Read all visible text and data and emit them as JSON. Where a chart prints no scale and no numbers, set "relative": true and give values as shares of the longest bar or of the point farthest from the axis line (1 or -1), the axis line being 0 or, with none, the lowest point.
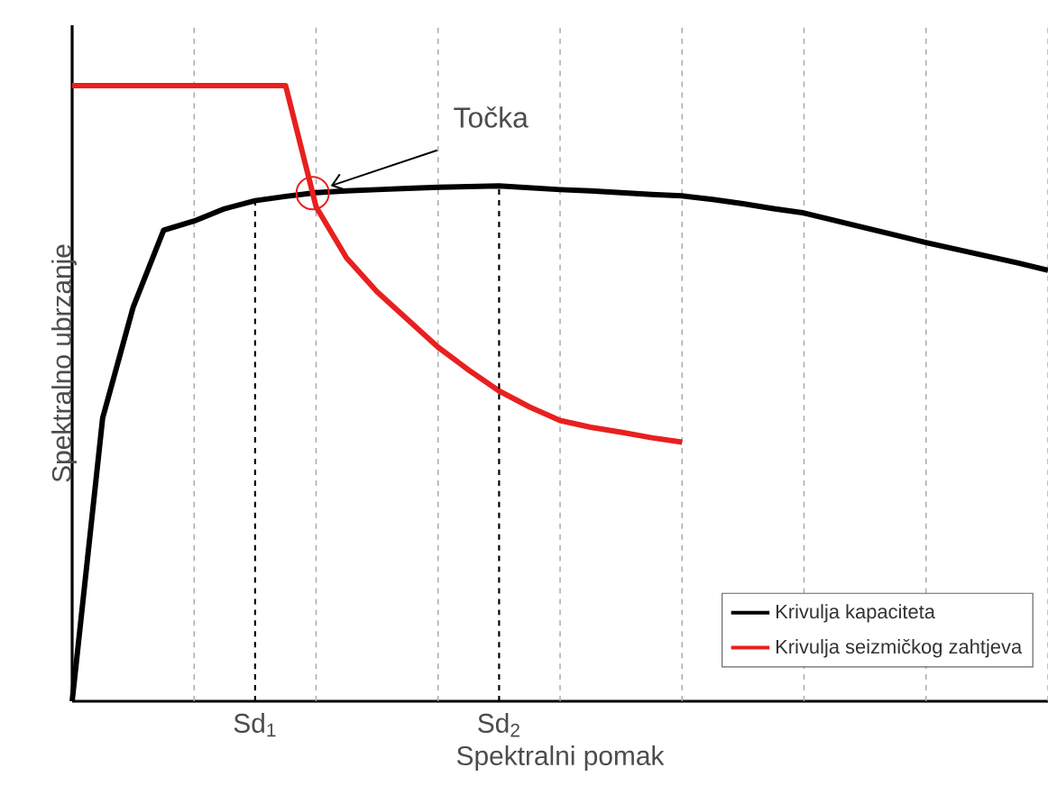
{
  "chart_data": {
    "type": "line",
    "relative": true,
    "xlabel": "Spektralni pomak",
    "ylabel": "Spektralno ubrzanje",
    "categories": [
      null,
      null,
      null,
      null,
      null,
      null,
      "Sd$_{1}$",
      null,
      null,
      null,
      null,
      null,
      null,
      null,
      "Sd$_{2}$",
      null,
      null,
      null,
      null,
      null,
      null,
      null,
      null,
      null,
      null,
      null,
      null,
      null,
      null,
      null,
      null,
      null,
      null
    ],
    "grid": "x",
    "legend": "bottom right",
    "marker": "none",
    "line_style": "solid",
    "annotations": [
      "Točka"
    ],
    "series": [
      {
        "name": "Krivulja kapaciteta",
        "color": "#000000",
        "values": [
          0,
          0.46,
          0.64,
          0.765,
          0.78,
          0.8,
          0.813,
          0.82,
          0.826,
          0.829,
          0.831,
          0.833,
          0.835,
          0.836,
          0.837,
          0.834,
          0.831,
          0.829,
          0.826,
          0.823,
          0.821,
          0.815,
          0.808,
          0.8,
          0.793,
          0.781,
          0.769,
          0.757,
          0.745,
          0.734,
          0.723,
          0.712,
          0.7
        ]
      },
      {
        "name": "Krivulja seizmičkog zahtjeva",
        "color": "#e8201f",
        "values": [
          1,
          1,
          1,
          1,
          1,
          1,
          1,
          1,
          0.803,
          0.72,
          0.665,
          0.62,
          0.575,
          0.538,
          0.504,
          0.478,
          0.456,
          0.445,
          0.437,
          0.428,
          0.421,
          null,
          null,
          null,
          null,
          null,
          null,
          null,
          null,
          null,
          null,
          null,
          null
        ]
      }
    ]
  }
}
